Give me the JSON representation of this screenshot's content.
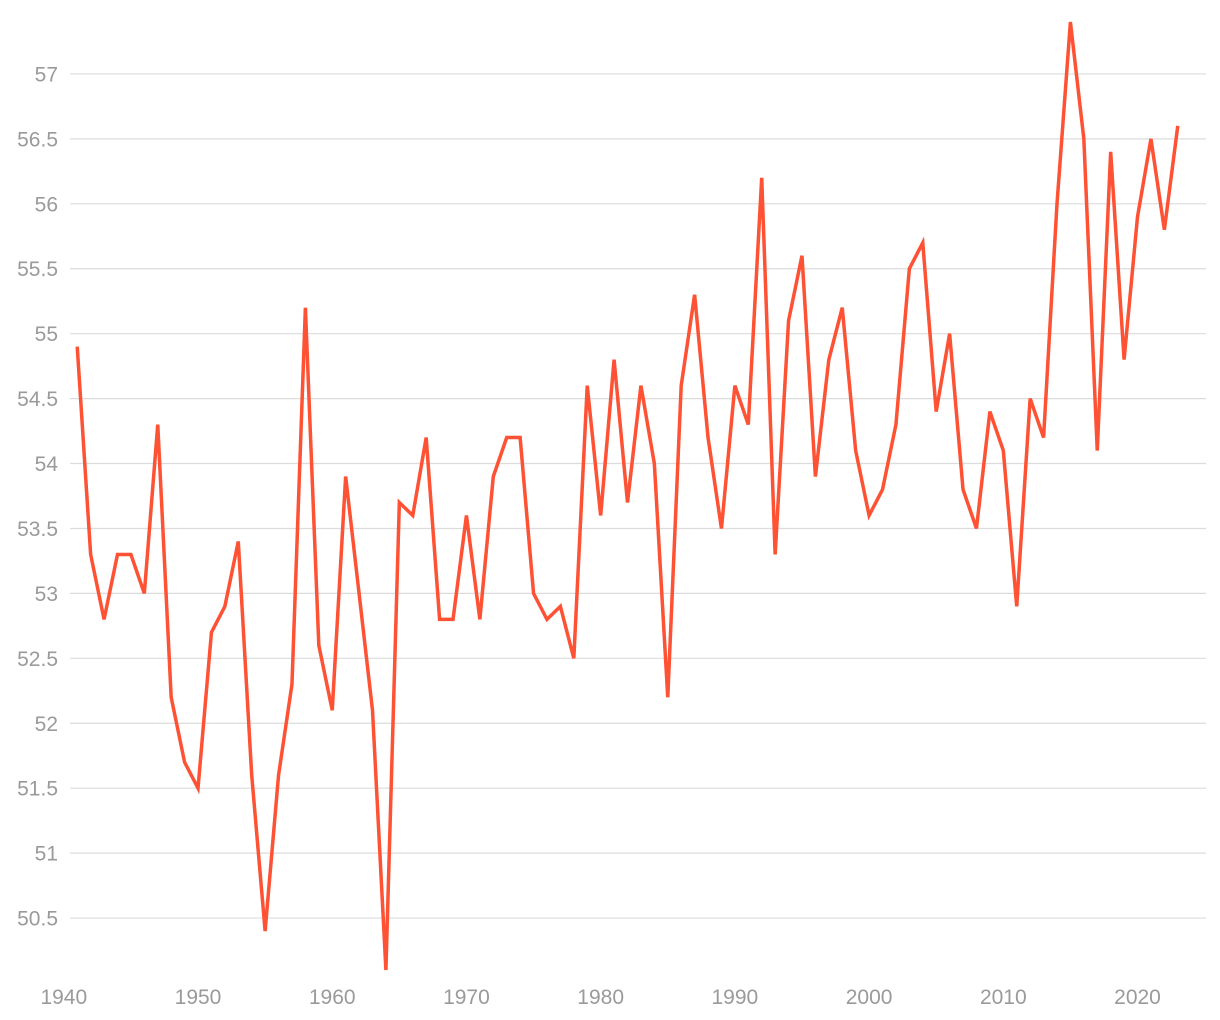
{
  "chart_data": {
    "type": "line",
    "title": "",
    "xlabel": "",
    "ylabel": "",
    "xlim": [
      1940,
      2024
    ],
    "ylim": [
      50.1,
      57.4
    ],
    "grid": true,
    "x_ticks": [
      1940,
      1950,
      1960,
      1970,
      1980,
      1990,
      2000,
      2010,
      2020
    ],
    "y_ticks": [
      50.5,
      51,
      51.5,
      52,
      52.5,
      53,
      53.5,
      54,
      54.5,
      55,
      55.5,
      56,
      56.5,
      57
    ],
    "colors": {
      "series": "#ff5133",
      "grid": "#dcdcdc",
      "tick_text": "#9a9a9a"
    },
    "series": [
      {
        "x": [
          1941,
          1942,
          1943,
          1944,
          1945,
          1946,
          1947,
          1948,
          1949,
          1950,
          1951,
          1952,
          1953,
          1954,
          1955,
          1956,
          1957,
          1958,
          1959,
          1960,
          1961,
          1962,
          1963,
          1964,
          1965,
          1966,
          1967,
          1968,
          1969,
          1970,
          1971,
          1972,
          1973,
          1974,
          1975,
          1976,
          1977,
          1978,
          1979,
          1980,
          1981,
          1982,
          1983,
          1984,
          1985,
          1986,
          1987,
          1988,
          1989,
          1990,
          1991,
          1992,
          1993,
          1994,
          1995,
          1996,
          1997,
          1998,
          1999,
          2000,
          2001,
          2002,
          2003,
          2004,
          2005,
          2006,
          2007,
          2008,
          2009,
          2010,
          2011,
          2012,
          2013,
          2014,
          2015,
          2016,
          2017,
          2018,
          2019,
          2020,
          2021,
          2022,
          2023
        ],
        "values": [
          54.9,
          53.3,
          52.8,
          53.3,
          53.3,
          53.0,
          54.3,
          52.2,
          51.7,
          51.5,
          52.7,
          52.9,
          53.4,
          51.6,
          50.4,
          51.6,
          52.3,
          55.2,
          52.6,
          52.1,
          53.9,
          53.0,
          52.1,
          50.1,
          53.7,
          53.6,
          54.2,
          52.8,
          52.8,
          53.6,
          52.8,
          53.9,
          54.2,
          54.2,
          53.0,
          52.8,
          52.9,
          52.5,
          54.6,
          53.6,
          54.8,
          53.7,
          54.6,
          54.0,
          52.2,
          54.6,
          55.3,
          54.2,
          53.5,
          54.6,
          54.3,
          56.2,
          53.3,
          55.1,
          55.6,
          53.9,
          54.8,
          55.2,
          54.1,
          53.6,
          53.8,
          54.3,
          55.5,
          55.7,
          54.4,
          55.0,
          53.8,
          53.5,
          54.4,
          54.1,
          52.9,
          54.5,
          54.2,
          56.0,
          57.4,
          56.5,
          54.1,
          56.4,
          54.8,
          55.9,
          56.5,
          55.8,
          56.6
        ]
      }
    ]
  }
}
